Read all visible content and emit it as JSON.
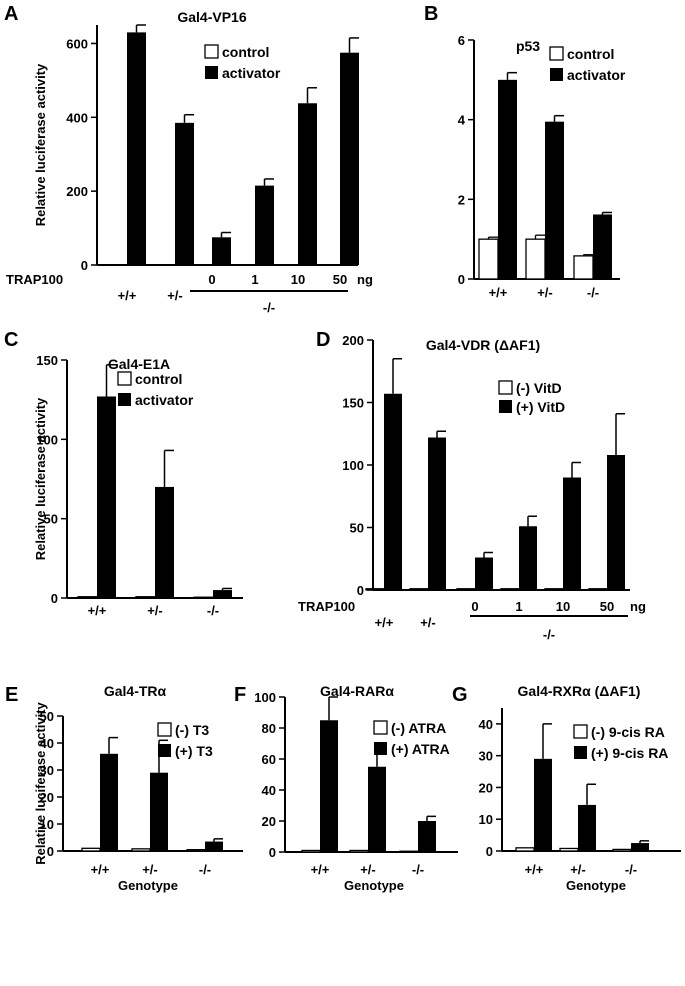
{
  "chart_data": [
    {
      "panel": "A",
      "type": "bar",
      "title": "Gal4-VP16",
      "ylabel": "Relative luciferase activity",
      "ylim": [
        0,
        650
      ],
      "yticks": [
        0,
        200,
        400,
        600
      ],
      "categories": [
        "+/+",
        "+/-",
        "0",
        "1",
        "10",
        "50"
      ],
      "series": [
        {
          "name": "control",
          "values": [
            null,
            null,
            null,
            null,
            null,
            null
          ],
          "errors": [
            null,
            null,
            null,
            null,
            null,
            null
          ]
        },
        {
          "name": "activator",
          "values": [
            630,
            385,
            75,
            215,
            438,
            575
          ],
          "errors": [
            20,
            22,
            13,
            18,
            42,
            40
          ]
        }
      ],
      "legend": [
        "control",
        "activator"
      ],
      "row_label": "TRAP100",
      "unit": "ng",
      "group_label": "-/-"
    },
    {
      "panel": "B",
      "type": "bar",
      "title": "p53",
      "ylabel": "",
      "ylim": [
        0,
        6
      ],
      "yticks": [
        0,
        2,
        4,
        6
      ],
      "categories": [
        "+/+",
        "+/-",
        "-/-"
      ],
      "series": [
        {
          "name": "control",
          "values": [
            1.0,
            1.0,
            0.58
          ],
          "errors": [
            0.05,
            0.1,
            0.03
          ]
        },
        {
          "name": "activator",
          "values": [
            5.0,
            3.95,
            1.62
          ],
          "errors": [
            0.18,
            0.15,
            0.05
          ]
        }
      ],
      "legend": [
        "control",
        "activator"
      ]
    },
    {
      "panel": "C",
      "type": "bar",
      "title": "Gal4-E1A",
      "ylabel": "Relative luciferase activity",
      "ylim": [
        0,
        150
      ],
      "yticks": [
        0,
        50,
        100,
        150
      ],
      "categories": [
        "+/+",
        "+/-",
        "-/-"
      ],
      "series": [
        {
          "name": "control",
          "values": [
            0.8,
            0.8,
            0.5
          ],
          "errors": [
            null,
            null,
            null
          ]
        },
        {
          "name": "activator",
          "values": [
            127,
            70,
            5
          ],
          "errors": [
            20,
            23,
            1
          ]
        }
      ],
      "legend": [
        "control",
        "activator"
      ]
    },
    {
      "panel": "D",
      "type": "bar",
      "title": "Gal4-VDR (ΔAF1)",
      "ylabel": "",
      "ylim": [
        0,
        200
      ],
      "yticks": [
        0,
        50,
        100,
        150,
        200
      ],
      "categories": [
        "+/+",
        "+/-",
        "0",
        "1",
        "10",
        "50"
      ],
      "series": [
        {
          "name": "(-) VitD",
          "values": [
            1,
            1,
            1,
            1,
            1,
            1
          ],
          "errors": [
            null,
            null,
            null,
            null,
            null,
            null
          ]
        },
        {
          "name": "(+) VitD",
          "values": [
            157,
            122,
            26,
            51,
            90,
            108
          ],
          "errors": [
            28,
            5,
            4,
            8,
            12,
            33
          ]
        }
      ],
      "legend": [
        "(-) VitD",
        "(+) VitD"
      ],
      "row_label": "TRAP100",
      "unit": "ng",
      "group_label": "-/-"
    },
    {
      "panel": "E",
      "type": "bar",
      "title": "Gal4-TRα",
      "ylabel": "Relative luciferase activity",
      "xlabel": "Genotype",
      "ylim": [
        0,
        50
      ],
      "yticks": [
        0,
        10,
        20,
        30,
        40,
        50
      ],
      "categories": [
        "+/+",
        "+/-",
        "-/-"
      ],
      "series": [
        {
          "name": "(-) T3",
          "values": [
            1.0,
            0.8,
            0.5
          ],
          "errors": [
            null,
            null,
            null
          ]
        },
        {
          "name": "(+) T3",
          "values": [
            36,
            29,
            3.5
          ],
          "errors": [
            6,
            12,
            1
          ]
        }
      ],
      "legend": [
        "(-) T3",
        "(+) T3"
      ]
    },
    {
      "panel": "F",
      "type": "bar",
      "title": "Gal4-RARα",
      "ylabel": "",
      "xlabel": "Genotype",
      "ylim": [
        0,
        100
      ],
      "yticks": [
        0,
        20,
        40,
        60,
        80,
        100
      ],
      "categories": [
        "+/+",
        "+/-",
        "-/-"
      ],
      "series": [
        {
          "name": "(-) ATRA",
          "values": [
            1,
            1,
            0.5
          ],
          "errors": [
            null,
            null,
            null
          ]
        },
        {
          "name": "(+) ATRA",
          "values": [
            85,
            55,
            20
          ],
          "errors": [
            15,
            15,
            3
          ]
        }
      ],
      "legend": [
        "(-) ATRA",
        "(+) ATRA"
      ]
    },
    {
      "panel": "G",
      "type": "bar",
      "title": "Gal4-RXRα (ΔAF1)",
      "ylabel": "",
      "xlabel": "Genotype",
      "ylim": [
        0,
        45
      ],
      "yticks": [
        0,
        10,
        20,
        30,
        40
      ],
      "categories": [
        "+/+",
        "+/-",
        "-/-"
      ],
      "series": [
        {
          "name": "(-) 9-cis RA",
          "values": [
            1.0,
            0.8,
            0.5
          ],
          "errors": [
            null,
            null,
            null
          ]
        },
        {
          "name": "(+) 9-cis RA",
          "values": [
            29,
            14.5,
            2.5
          ],
          "errors": [
            11,
            6.5,
            0.7
          ]
        }
      ],
      "legend": [
        "(-) 9-cis RA",
        "(+) 9-cis RA"
      ]
    }
  ]
}
